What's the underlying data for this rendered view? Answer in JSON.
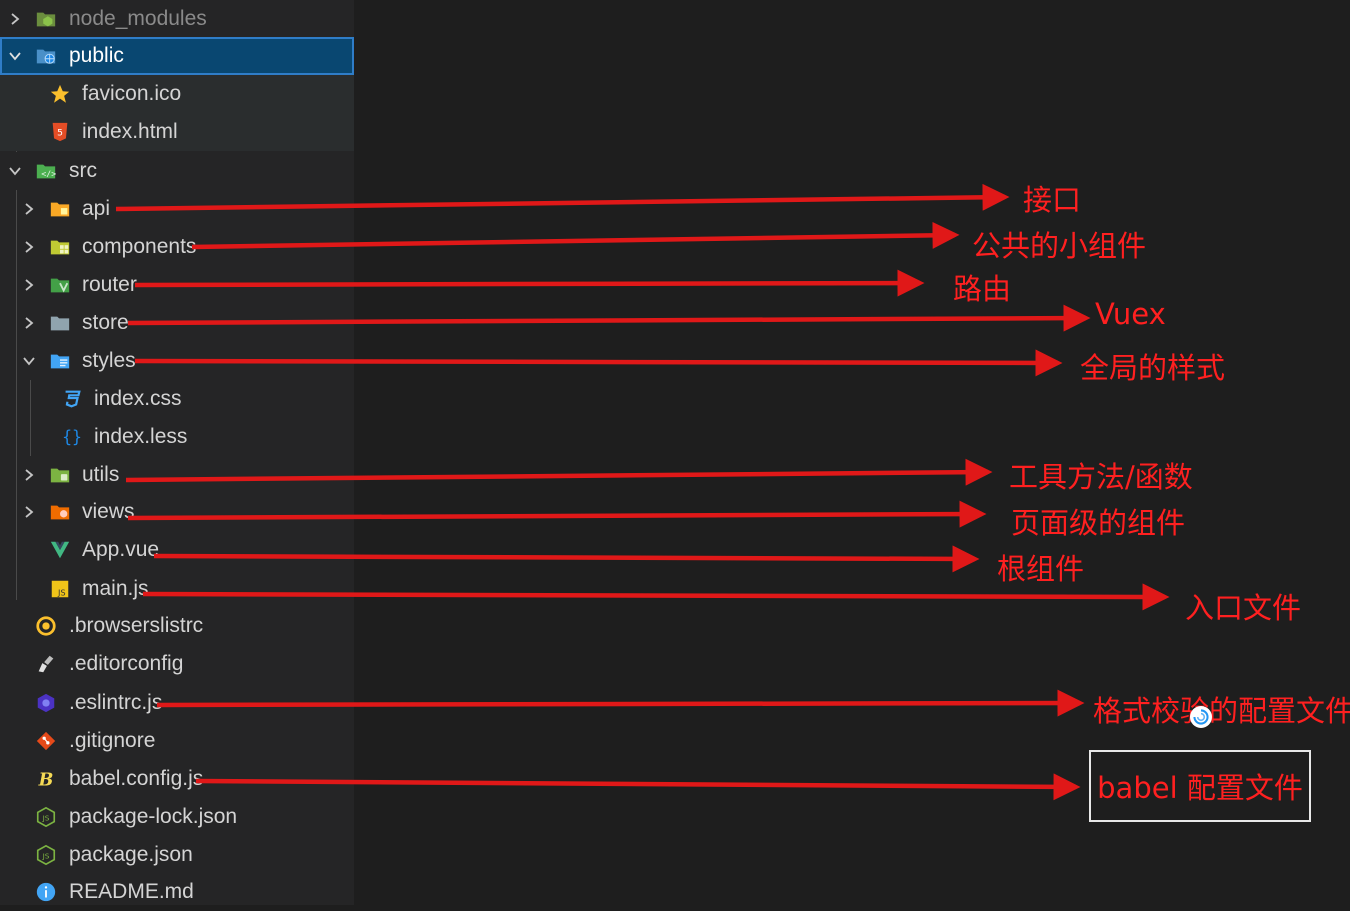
{
  "explorer": {
    "items": [
      {
        "label": "node_modules",
        "icon": "node-folder-icon",
        "expanded": false
      },
      {
        "label": "public",
        "icon": "public-folder-icon",
        "expanded": true,
        "selected": true
      },
      {
        "label": "favicon.ico",
        "icon": "favicon-star-icon"
      },
      {
        "label": "index.html",
        "icon": "html5-file-icon"
      },
      {
        "label": "src",
        "icon": "src-folder-icon",
        "expanded": true
      },
      {
        "label": "api",
        "icon": "api-folder-icon",
        "expanded": false
      },
      {
        "label": "components",
        "icon": "components-folder-icon",
        "expanded": false
      },
      {
        "label": "router",
        "icon": "router-folder-icon",
        "expanded": false
      },
      {
        "label": "store",
        "icon": "store-folder-icon",
        "expanded": false
      },
      {
        "label": "styles",
        "icon": "styles-folder-icon",
        "expanded": true
      },
      {
        "label": "index.css",
        "icon": "css3-file-icon"
      },
      {
        "label": "index.less",
        "icon": "less-file-icon"
      },
      {
        "label": "utils",
        "icon": "utils-folder-icon",
        "expanded": false
      },
      {
        "label": "views",
        "icon": "views-folder-icon",
        "expanded": false
      },
      {
        "label": "App.vue",
        "icon": "vue-file-icon"
      },
      {
        "label": "main.js",
        "icon": "js-file-icon"
      },
      {
        "label": ".browserslistrc",
        "icon": "browserslist-icon"
      },
      {
        "label": ".editorconfig",
        "icon": "editorconfig-icon"
      },
      {
        "label": ".eslintrc.js",
        "icon": "eslint-icon"
      },
      {
        "label": ".gitignore",
        "icon": "git-icon"
      },
      {
        "label": "babel.config.js",
        "icon": "babel-icon"
      },
      {
        "label": "package-lock.json",
        "icon": "nodejs-icon"
      },
      {
        "label": "package.json",
        "icon": "nodejs-icon"
      },
      {
        "label": "README.md",
        "icon": "info-icon"
      }
    ]
  },
  "annotations": {
    "api": "接口",
    "components": "公共的小组件",
    "router": "路由",
    "store": "Vuex",
    "styles": "全局的样式",
    "utils": "工具方法/函数",
    "views": "页面级的组件",
    "app_vue": "根组件",
    "main_js": "入口文件",
    "eslintrc": "格式校验的配置文件",
    "babel": "babel 配置文件"
  },
  "colors": {
    "annotation_red": "#ff2020",
    "arrow_red": "#e01818",
    "selection": "#094771"
  }
}
